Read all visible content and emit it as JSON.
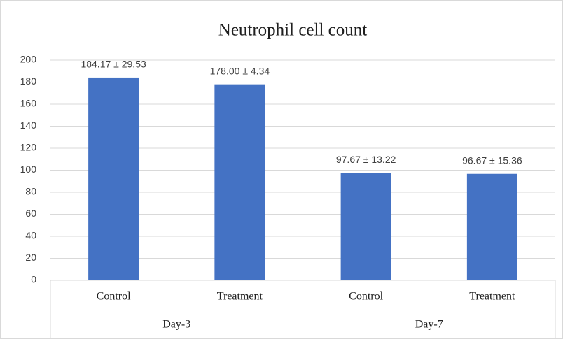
{
  "chart_data": {
    "type": "bar",
    "title": "Neutrophil cell count",
    "categories": [
      "Control",
      "Treatment",
      "Control",
      "Treatment"
    ],
    "groups": [
      "Day-3",
      "Day-7"
    ],
    "values": [
      184.17,
      178.0,
      97.67,
      96.67
    ],
    "value_labels": [
      "184.17 ± 29.53",
      "178.00 ± 4.34",
      "97.67 ± 13.22",
      "96.67 ± 15.36"
    ],
    "color": "#4472c4",
    "ylim": [
      0,
      200
    ],
    "yticks": [
      0,
      20,
      40,
      60,
      80,
      100,
      120,
      140,
      160,
      180,
      200
    ],
    "grid": true
  }
}
